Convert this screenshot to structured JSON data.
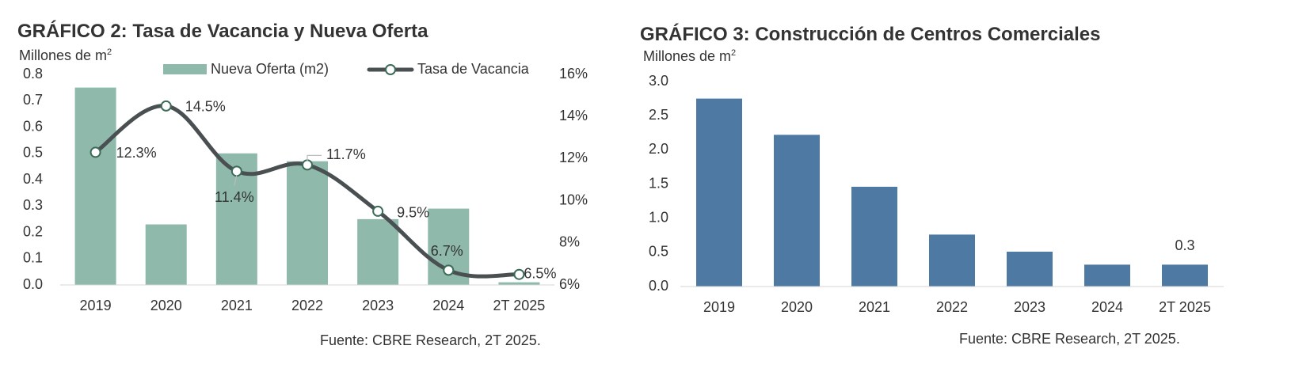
{
  "chart_data": [
    {
      "type": "bar",
      "title": "GRÁFICO 2: Tasa de Vacancia y Nueva Oferta",
      "units_label": "Millones de m",
      "units_sup": "2",
      "categories": [
        "2019",
        "2020",
        "2021",
        "2022",
        "2023",
        "2024",
        "2T 2025"
      ],
      "series": [
        {
          "name": "Nueva Oferta (m2)",
          "type": "bar",
          "axis": "left",
          "values": [
            0.75,
            0.23,
            0.5,
            0.47,
            0.25,
            0.29,
            0.01
          ]
        },
        {
          "name": "Tasa de Vacancia",
          "type": "line",
          "axis": "right",
          "values": [
            12.3,
            14.5,
            11.4,
            11.7,
            9.5,
            6.7,
            6.5
          ],
          "labels": [
            "12.3%",
            "14.5%",
            "11.4%",
            "11.7%",
            "9.5%",
            "6.7%",
            "6.5%"
          ]
        }
      ],
      "y_left": {
        "ylim": [
          0,
          0.8
        ],
        "ticks": [
          "0.0",
          "0.1",
          "0.2",
          "0.3",
          "0.4",
          "0.5",
          "0.6",
          "0.7",
          "0.8"
        ]
      },
      "y_right": {
        "ylim": [
          6,
          16
        ],
        "ticks": [
          "6%",
          "8%",
          "10%",
          "12%",
          "14%",
          "16%"
        ]
      },
      "legend_position": "top",
      "grid": false,
      "colors": {
        "bar": "#8fbaab",
        "line": "#4a5052",
        "marker_fill": "#ffffff"
      },
      "source": "Fuente: CBRE Research, 2T 2025."
    },
    {
      "type": "bar",
      "title": "GRÁFICO 3: Construcción de Centros Comerciales",
      "units_label": "Millones de m",
      "units_sup": "2",
      "categories": [
        "2019",
        "2020",
        "2021",
        "2022",
        "2023",
        "2024",
        "2T 2025"
      ],
      "values": [
        2.75,
        2.22,
        1.46,
        0.76,
        0.51,
        0.32,
        0.32
      ],
      "data_labels": [
        "",
        "",
        "",
        "",
        "",
        "",
        "0.3"
      ],
      "ylim": [
        0,
        3.0
      ],
      "ticks": [
        "0.0",
        "0.5",
        "1.0",
        "1.5",
        "2.0",
        "2.5",
        "3.0"
      ],
      "grid": false,
      "colors": {
        "bar": "#4e79a2"
      },
      "source": "Fuente: CBRE Research, 2T 2025."
    }
  ]
}
